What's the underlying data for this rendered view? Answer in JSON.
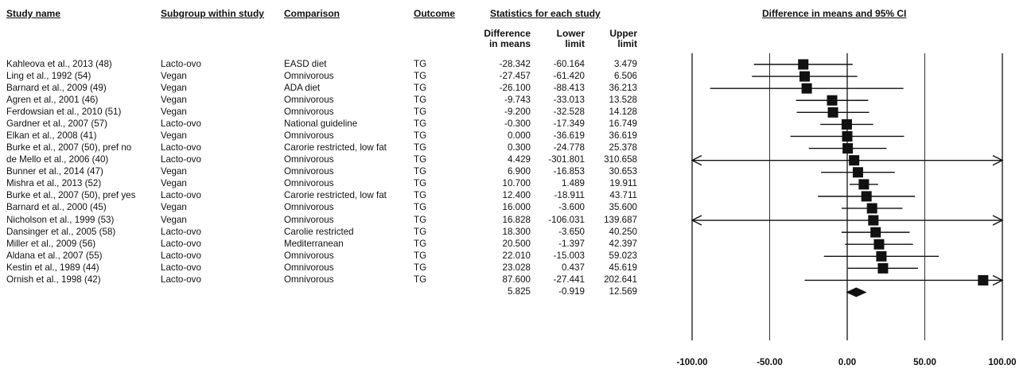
{
  "headers": {
    "study": "Study name",
    "subgroup": "Subgroup within study",
    "comparison": "Comparison",
    "outcome": "Outcome",
    "stats": "Statistics for each study",
    "plot": "Difference in means and 95% CI",
    "diff": [
      "Difference",
      "in means"
    ],
    "lower": [
      "Lower",
      "limit"
    ],
    "upper": [
      "Upper",
      "limit"
    ]
  },
  "chart_data": {
    "type": "forest",
    "xlim": [
      -100,
      100
    ],
    "x_ticks": [
      "-100.00",
      "-50.00",
      "0.00",
      "50.00",
      "100.00"
    ],
    "grid": true,
    "studies": [
      {
        "name": "Kahleova et al., 2013 (48)",
        "subgroup": "Lacto-ovo",
        "comparison": "EASD diet",
        "outcome": "TG",
        "diff": "-28.342",
        "lower": "-60.164",
        "upper": "3.479"
      },
      {
        "name": "Ling et al., 1992 (54)",
        "subgroup": "Vegan",
        "comparison": "Omnivorous",
        "outcome": "TG",
        "diff": "-27.457",
        "lower": "-61.420",
        "upper": "6.506"
      },
      {
        "name": "Barnard et al., 2009 (49)",
        "subgroup": "Vegan",
        "comparison": "ADA diet",
        "outcome": "TG",
        "diff": "-26.100",
        "lower": "-88.413",
        "upper": "36.213"
      },
      {
        "name": "Agren et al., 2001 (46)",
        "subgroup": "Vegan",
        "comparison": "Omnivorous",
        "outcome": "TG",
        "diff": "-9.743",
        "lower": "-33.013",
        "upper": "13.528"
      },
      {
        "name": "Ferdowsian et al., 2010 (51)",
        "subgroup": "Vegan",
        "comparison": "Omnivorous",
        "outcome": "TG",
        "diff": "-9.200",
        "lower": "-32.528",
        "upper": "14.128"
      },
      {
        "name": "Gardner et al., 2007 (57)",
        "subgroup": "Lacto-ovo",
        "comparison": "National guideline",
        "outcome": "TG",
        "diff": "-0.300",
        "lower": "-17.349",
        "upper": "16.749"
      },
      {
        "name": "Elkan et al., 2008 (41)",
        "subgroup": "Vegan",
        "comparison": "Omnivorous",
        "outcome": "TG",
        "diff": "0.000",
        "lower": "-36.619",
        "upper": "36.619"
      },
      {
        "name": "Burke et al., 2007 (50), pref no",
        "subgroup": "Lacto-ovo",
        "comparison": "Carorie restricted, low fat",
        "outcome": "TG",
        "diff": "0.300",
        "lower": "-24.778",
        "upper": "25.378"
      },
      {
        "name": "de Mello et al., 2006 (40)",
        "subgroup": "Lacto-ovo",
        "comparison": "Omnivorous",
        "outcome": "TG",
        "diff": "4.429",
        "lower": "-301.801",
        "upper": "310.658"
      },
      {
        "name": "Bunner et al., 2014 (47)",
        "subgroup": "Vegan",
        "comparison": "Omnivorous",
        "outcome": "TG",
        "diff": "6.900",
        "lower": "-16.853",
        "upper": "30.653"
      },
      {
        "name": "Mishra et al., 2013 (52)",
        "subgroup": "Vegan",
        "comparison": "Omnivorous",
        "outcome": "TG",
        "diff": "10.700",
        "lower": "1.489",
        "upper": "19.911"
      },
      {
        "name": "Burke et al., 2007 (50), pref yes",
        "subgroup": "Lacto-ovo",
        "comparison": "Carorie restricted, low fat",
        "outcome": "TG",
        "diff": "12.400",
        "lower": "-18.911",
        "upper": "43.711"
      },
      {
        "name": "Barnard et al., 2000 (45)",
        "subgroup": "Vegan",
        "comparison": "Omnivorous",
        "outcome": "TG",
        "diff": "16.000",
        "lower": "-3.600",
        "upper": "35.600"
      },
      {
        "name": "Nicholson et al., 1999 (53)",
        "subgroup": "Vegan",
        "comparison": "Omnivorous",
        "outcome": "TG",
        "diff": "16.828",
        "lower": "-106.031",
        "upper": "139.687"
      },
      {
        "name": "Dansinger et al., 2005 (58)",
        "subgroup": "Lacto-ovo",
        "comparison": "Carolie restricted",
        "outcome": "TG",
        "diff": "18.300",
        "lower": "-3.650",
        "upper": "40.250"
      },
      {
        "name": "Miller et al., 2009 (56)",
        "subgroup": "Lacto-ovo",
        "comparison": "Mediterranean",
        "outcome": "TG",
        "diff": "20.500",
        "lower": "-1.397",
        "upper": "42.397"
      },
      {
        "name": "Aldana et al., 2007 (55)",
        "subgroup": "Lacto-ovo",
        "comparison": "Omnivorous",
        "outcome": "TG",
        "diff": "22.010",
        "lower": "-15.003",
        "upper": "59.023"
      },
      {
        "name": "Kestin et al., 1989 (44)",
        "subgroup": "Lacto-ovo",
        "comparison": "Omnivorous",
        "outcome": "TG",
        "diff": "23.028",
        "lower": "0.437",
        "upper": "45.619"
      },
      {
        "name": "Ornish et al., 1998 (42)",
        "subgroup": "Lacto-ovo",
        "comparison": "Omnivorous",
        "outcome": "TG",
        "diff": "87.600",
        "lower": "-27.441",
        "upper": "202.641"
      }
    ],
    "pooled": {
      "diff": "5.825",
      "lower": "-0.919",
      "upper": "12.569"
    }
  }
}
